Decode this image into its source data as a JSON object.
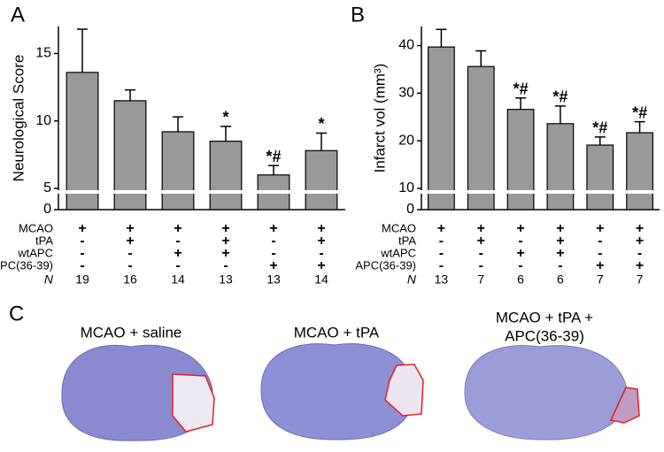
{
  "chart_data": [
    {
      "type": "bar",
      "panel": "A",
      "ylabel": "Neurological Score",
      "color": "#999999",
      "values": [
        13.6,
        11.5,
        9.2,
        8.5,
        6.0,
        7.8
      ],
      "errors": [
        3.2,
        0.8,
        1.1,
        1.1,
        0.7,
        1.3
      ],
      "annotations": [
        null,
        null,
        null,
        "*",
        "*#",
        "*"
      ],
      "ylim": [
        0,
        17
      ],
      "yticks": [
        0,
        5,
        10,
        15
      ],
      "broken_axis": true,
      "conditions": [
        {
          "name": "MCAO",
          "values": [
            "+",
            "+",
            "+",
            "+",
            "+",
            "+"
          ]
        },
        {
          "name": "tPA",
          "values": [
            "-",
            "+",
            "-",
            "+",
            "-",
            "+"
          ]
        },
        {
          "name": "wtAPC",
          "values": [
            "-",
            "-",
            "+",
            "+",
            "-",
            "-"
          ]
        },
        {
          "name": "APC(36-39)",
          "values": [
            "-",
            "-",
            "-",
            "-",
            "+",
            "+"
          ]
        }
      ],
      "n_label": "N",
      "n": [
        19,
        16,
        14,
        13,
        13,
        14
      ]
    },
    {
      "type": "bar",
      "panel": "B",
      "ylabel": "Infarct vol (mm³)",
      "color": "#999999",
      "values": [
        39.7,
        35.6,
        26.6,
        23.6,
        19.1,
        21.7
      ],
      "errors": [
        3.7,
        3.3,
        2.4,
        3.7,
        1.7,
        2.3
      ],
      "annotations": [
        null,
        null,
        "*#",
        "*#",
        "*#",
        "*#"
      ],
      "ylim": [
        0,
        44
      ],
      "yticks": [
        0,
        10,
        20,
        30,
        40
      ],
      "broken_axis": true,
      "conditions": [
        {
          "name": "MCAO",
          "values": [
            "+",
            "+",
            "+",
            "+",
            "+",
            "+"
          ]
        },
        {
          "name": "tPA",
          "values": [
            "-",
            "+",
            "-",
            "+",
            "-",
            "+"
          ]
        },
        {
          "name": "wtAPC",
          "values": [
            "-",
            "-",
            "+",
            "+",
            "-",
            "-"
          ]
        },
        {
          "name": "APC(36-39)",
          "values": [
            "-",
            "-",
            "-",
            "-",
            "+",
            "+"
          ]
        }
      ],
      "n_label": "N",
      "n": [
        13,
        7,
        6,
        6,
        7,
        7
      ]
    }
  ],
  "panel_c": {
    "label": "C",
    "titles": [
      [
        "MCAO + saline"
      ],
      [
        "MCAO + tPA"
      ],
      [
        "MCAO + tPA +",
        "APC(36-39)"
      ]
    ]
  }
}
